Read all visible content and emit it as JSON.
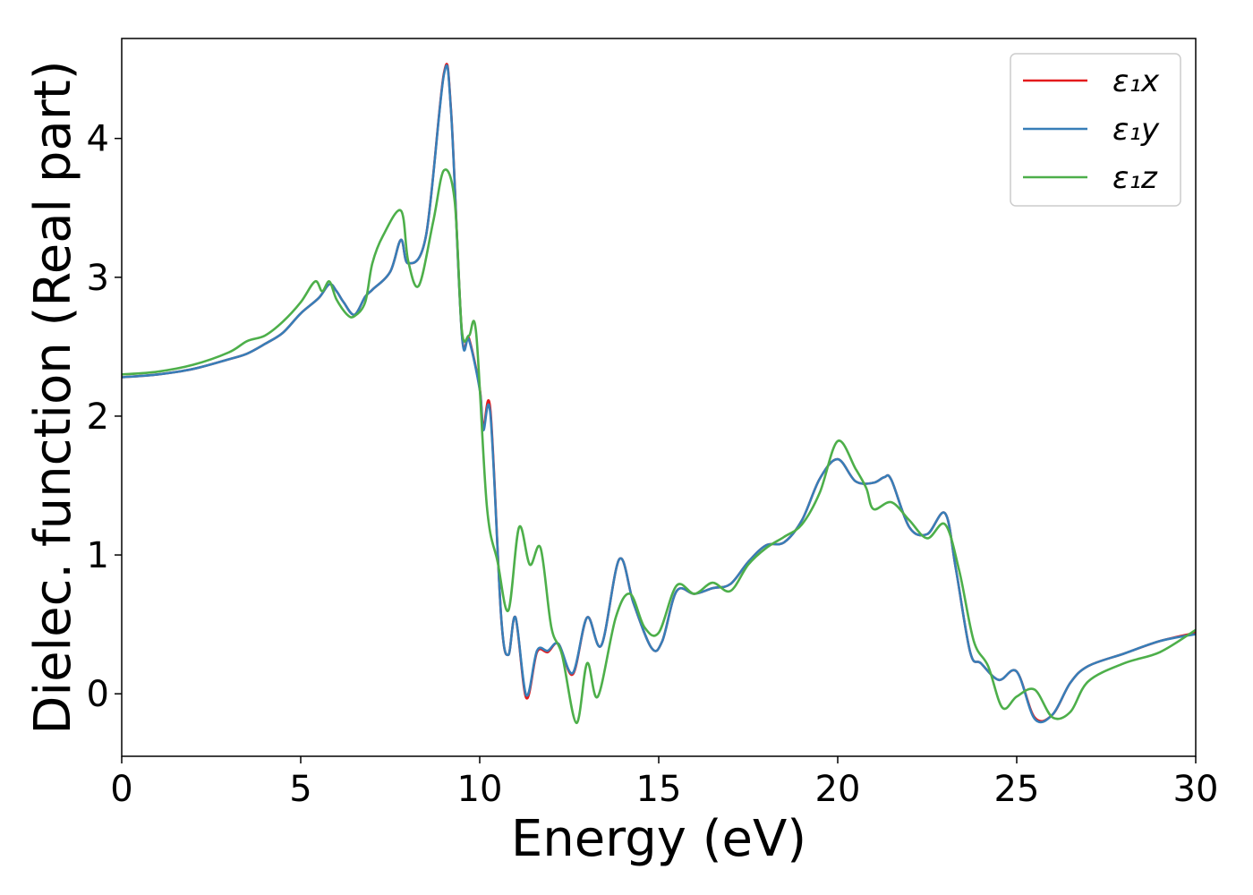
{
  "chart_data": {
    "type": "line",
    "title": "",
    "xlabel": "Energy (eV)",
    "ylabel": "Dielec. function (Real part)",
    "xlim": [
      0,
      30
    ],
    "ylim": [
      -0.45,
      4.72
    ],
    "xticks": [
      0,
      5,
      10,
      15,
      20,
      25,
      30
    ],
    "yticks": [
      0,
      1,
      2,
      3,
      4
    ],
    "grid": false,
    "legend_position": "top-right",
    "series": [
      {
        "name": "ε₁x",
        "color": "#e41a1c",
        "x": [
          0,
          1,
          2,
          3,
          3.5,
          4,
          4.5,
          5,
          5.5,
          5.8,
          6,
          6.2,
          6.5,
          6.8,
          7,
          7.5,
          7.8,
          8,
          8.5,
          9,
          9.2,
          9.5,
          9.7,
          10,
          10.1,
          10.3,
          10.6,
          10.8,
          11,
          11.3,
          11.6,
          11.9,
          12.2,
          12.6,
          13,
          13.4,
          13.9,
          14.3,
          14.8,
          15.1,
          15.5,
          16,
          16.5,
          17,
          17.5,
          18,
          18.5,
          19,
          19.5,
          20,
          20.5,
          21,
          21.3,
          21.5,
          22,
          22.5,
          23,
          23.3,
          23.7,
          24,
          24.5,
          25,
          25.5,
          26,
          26.5,
          27,
          28,
          29,
          30
        ],
        "values": [
          2.28,
          2.3,
          2.34,
          2.41,
          2.45,
          2.52,
          2.6,
          2.74,
          2.85,
          2.95,
          2.9,
          2.82,
          2.73,
          2.86,
          2.91,
          3.04,
          3.27,
          3.1,
          3.3,
          4.47,
          4.2,
          2.6,
          2.56,
          2.2,
          1.92,
          2.04,
          0.55,
          0.28,
          0.55,
          -0.03,
          0.3,
          0.3,
          0.36,
          0.14,
          0.55,
          0.35,
          0.97,
          0.65,
          0.33,
          0.38,
          0.74,
          0.72,
          0.76,
          0.79,
          0.95,
          1.07,
          1.09,
          1.25,
          1.55,
          1.69,
          1.53,
          1.52,
          1.56,
          1.54,
          1.2,
          1.15,
          1.3,
          0.9,
          0.3,
          0.22,
          0.1,
          0.16,
          -0.17,
          -0.15,
          0.08,
          0.2,
          0.29,
          0.38,
          0.44
        ]
      },
      {
        "name": "ε₁y",
        "color": "#377eb8",
        "x": [
          0,
          1,
          2,
          3,
          3.5,
          4,
          4.5,
          5,
          5.5,
          5.8,
          6,
          6.2,
          6.5,
          6.8,
          7,
          7.5,
          7.8,
          8,
          8.5,
          9,
          9.2,
          9.5,
          9.7,
          10,
          10.1,
          10.3,
          10.6,
          10.8,
          11,
          11.3,
          11.6,
          11.9,
          12.2,
          12.6,
          13,
          13.4,
          13.9,
          14.3,
          14.8,
          15.1,
          15.5,
          16,
          16.5,
          17,
          17.5,
          18,
          18.5,
          19,
          19.5,
          20,
          20.5,
          21,
          21.3,
          21.5,
          22,
          22.5,
          23,
          23.3,
          23.7,
          24,
          24.5,
          25,
          25.5,
          26,
          26.5,
          27,
          28,
          29,
          30
        ],
        "values": [
          2.28,
          2.3,
          2.34,
          2.41,
          2.45,
          2.52,
          2.6,
          2.74,
          2.85,
          2.95,
          2.9,
          2.82,
          2.73,
          2.86,
          2.91,
          3.04,
          3.27,
          3.1,
          3.3,
          4.46,
          4.19,
          2.59,
          2.55,
          2.19,
          1.9,
          2.01,
          0.55,
          0.28,
          0.55,
          -0.01,
          0.31,
          0.31,
          0.36,
          0.15,
          0.55,
          0.35,
          0.97,
          0.65,
          0.33,
          0.38,
          0.74,
          0.72,
          0.76,
          0.79,
          0.95,
          1.07,
          1.09,
          1.25,
          1.55,
          1.69,
          1.53,
          1.52,
          1.56,
          1.54,
          1.2,
          1.15,
          1.3,
          0.9,
          0.3,
          0.22,
          0.1,
          0.16,
          -0.18,
          -0.15,
          0.08,
          0.2,
          0.29,
          0.38,
          0.43
        ]
      },
      {
        "name": "ε₁z",
        "color": "#4daf4a",
        "x": [
          0,
          1,
          2,
          3,
          3.5,
          4,
          4.5,
          5,
          5.4,
          5.6,
          5.8,
          6,
          6.3,
          6.5,
          6.8,
          7,
          7.3,
          7.8,
          8,
          8.3,
          8.7,
          9,
          9.3,
          9.5,
          9.7,
          9.9,
          10.2,
          10.5,
          10.8,
          11.1,
          11.4,
          11.7,
          12,
          12.3,
          12.7,
          13,
          13.3,
          13.8,
          14.2,
          14.6,
          15,
          15.5,
          16,
          16.5,
          17,
          17.5,
          18,
          18.5,
          19,
          19.5,
          20,
          20.5,
          20.8,
          21,
          21.5,
          22,
          22.5,
          23,
          23.4,
          23.8,
          24.2,
          24.6,
          25,
          25.5,
          26,
          26.5,
          27,
          28,
          29,
          30
        ],
        "values": [
          2.3,
          2.32,
          2.37,
          2.46,
          2.54,
          2.58,
          2.68,
          2.82,
          2.97,
          2.9,
          2.97,
          2.84,
          2.73,
          2.72,
          2.82,
          3.1,
          3.3,
          3.48,
          3.12,
          2.94,
          3.4,
          3.77,
          3.55,
          2.62,
          2.58,
          2.6,
          1.35,
          0.95,
          0.6,
          1.2,
          0.93,
          1.05,
          0.48,
          0.28,
          -0.21,
          0.22,
          -0.02,
          0.55,
          0.72,
          0.48,
          0.44,
          0.78,
          0.72,
          0.8,
          0.74,
          0.93,
          1.05,
          1.13,
          1.22,
          1.45,
          1.82,
          1.62,
          1.48,
          1.33,
          1.38,
          1.25,
          1.12,
          1.22,
          0.88,
          0.38,
          0.2,
          -0.1,
          -0.02,
          0.03,
          -0.17,
          -0.13,
          0.09,
          0.22,
          0.3,
          0.46
        ]
      }
    ]
  }
}
